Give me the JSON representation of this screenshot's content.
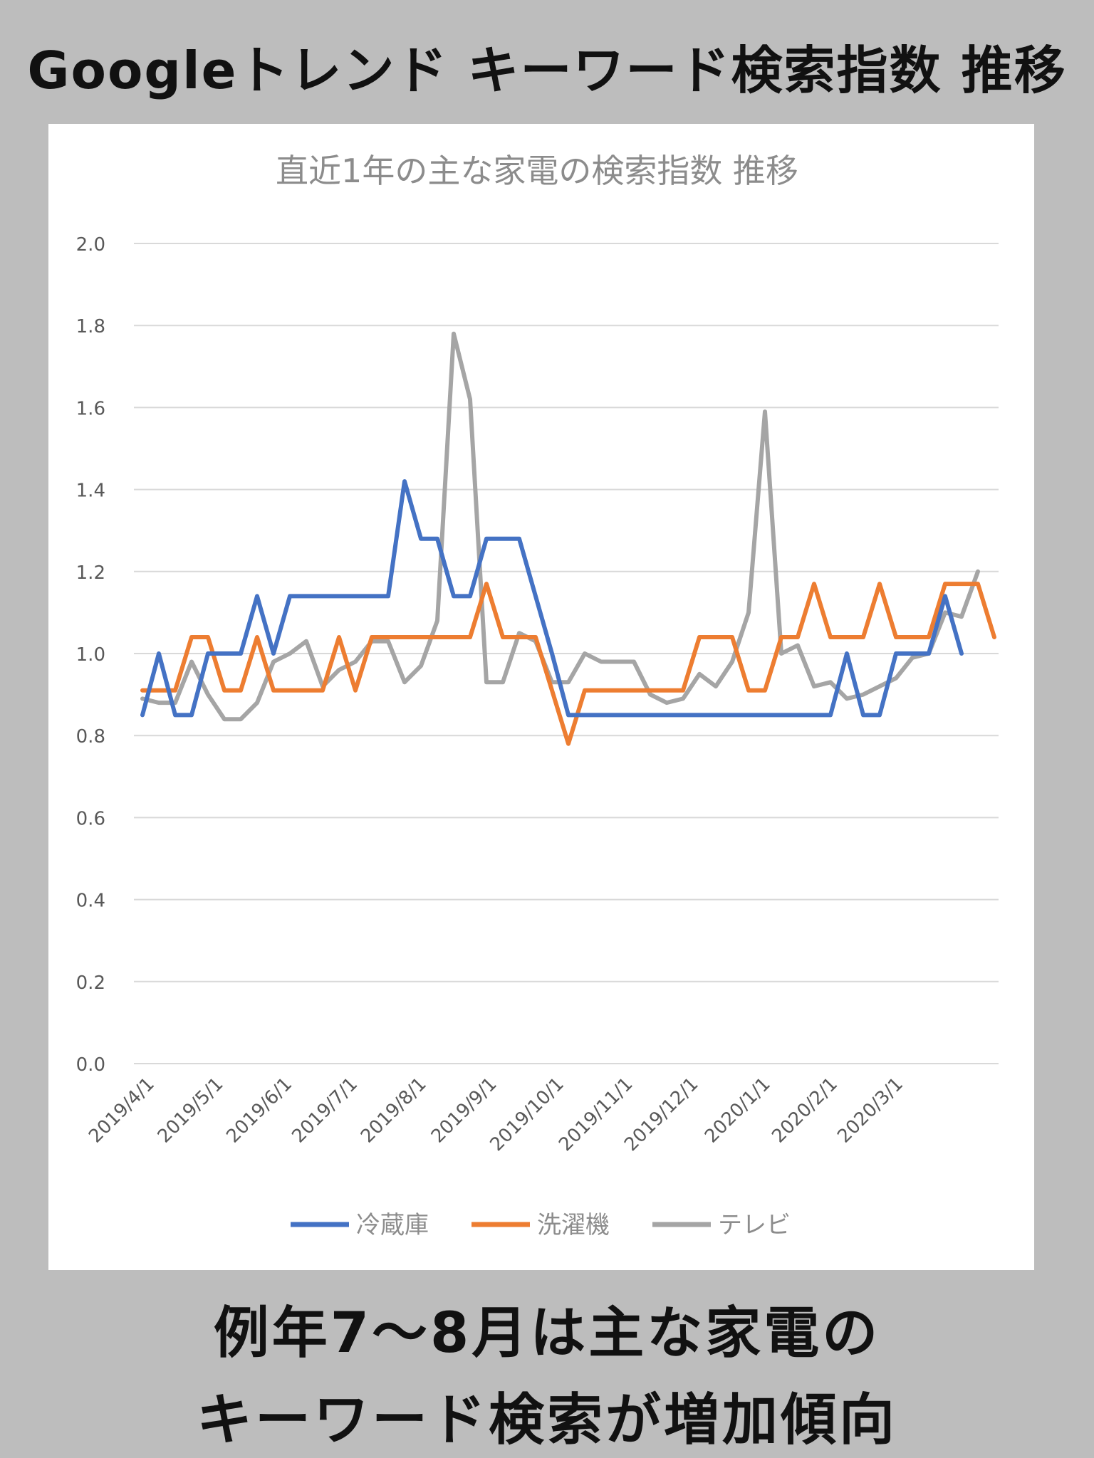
{
  "headline": "Googleトレンド キーワード検索指数 推移",
  "caption_lines": [
    "例年7～8月は主な家電の",
    "キーワード検索が増加傾向"
  ],
  "chart_data": {
    "type": "line",
    "title": "直近1年の主な家電の検索指数 推移",
    "xlabel": "",
    "ylabel": "",
    "ylim": [
      0,
      2.0
    ],
    "yticks": [
      "0.0",
      "0.2",
      "0.4",
      "0.6",
      "0.8",
      "1.0",
      "1.2",
      "1.4",
      "1.6",
      "1.8",
      "2.0"
    ],
    "xticks": [
      "2019/4/1",
      "2019/5/1",
      "2019/6/1",
      "2019/7/1",
      "2019/8/1",
      "2019/9/1",
      "2019/10/1",
      "2019/11/1",
      "2019/12/1",
      "2020/1/1",
      "2020/2/1",
      "2020/3/1"
    ],
    "xtick_week_index": [
      0,
      4.2,
      8.4,
      12.4,
      16.6,
      20.9,
      25.0,
      29.2,
      33.2,
      37.6,
      41.7,
      45.7
    ],
    "grid": true,
    "legend_position": "bottom",
    "series": [
      {
        "name": "冷蔵庫",
        "color": "#4472c4",
        "values": [
          0.85,
          1.0,
          0.85,
          0.85,
          1.0,
          1.0,
          1.0,
          1.14,
          1.0,
          1.14,
          1.14,
          1.14,
          1.14,
          1.14,
          1.14,
          1.14,
          1.42,
          1.28,
          1.28,
          1.14,
          1.14,
          1.28,
          1.28,
          1.28,
          1.14,
          1.0,
          0.85,
          0.85,
          0.85,
          0.85,
          0.85,
          0.85,
          0.85,
          0.85,
          0.85,
          0.85,
          0.85,
          0.85,
          0.85,
          0.85,
          0.85,
          0.85,
          0.85,
          1.0,
          0.85,
          0.85,
          1.0,
          1.0,
          1.0,
          1.14,
          1.0
        ]
      },
      {
        "name": "洗濯機",
        "color": "#ed7d31",
        "values": [
          0.91,
          0.91,
          0.91,
          1.04,
          1.04,
          0.91,
          0.91,
          1.04,
          0.91,
          0.91,
          0.91,
          0.91,
          1.04,
          0.91,
          1.04,
          1.04,
          1.04,
          1.04,
          1.04,
          1.04,
          1.04,
          1.17,
          1.04,
          1.04,
          1.04,
          0.91,
          0.78,
          0.91,
          0.91,
          0.91,
          0.91,
          0.91,
          0.91,
          0.91,
          1.04,
          1.04,
          1.04,
          0.91,
          0.91,
          1.04,
          1.04,
          1.17,
          1.04,
          1.04,
          1.04,
          1.17,
          1.04,
          1.04,
          1.04,
          1.17,
          1.17,
          1.17,
          1.04
        ]
      },
      {
        "name": "テレビ",
        "color": "#a5a5a5",
        "values": [
          0.89,
          0.88,
          0.88,
          0.98,
          0.9,
          0.84,
          0.84,
          0.88,
          0.98,
          1.0,
          1.03,
          0.92,
          0.96,
          0.98,
          1.03,
          1.03,
          0.93,
          0.97,
          1.08,
          1.78,
          1.62,
          0.93,
          0.93,
          1.05,
          1.03,
          0.93,
          0.93,
          1.0,
          0.98,
          0.98,
          0.98,
          0.9,
          0.88,
          0.89,
          0.95,
          0.92,
          0.98,
          1.1,
          1.59,
          1.0,
          1.02,
          0.92,
          0.93,
          0.89,
          0.9,
          0.92,
          0.94,
          0.99,
          1.0,
          1.1,
          1.09,
          1.2
        ]
      }
    ]
  }
}
